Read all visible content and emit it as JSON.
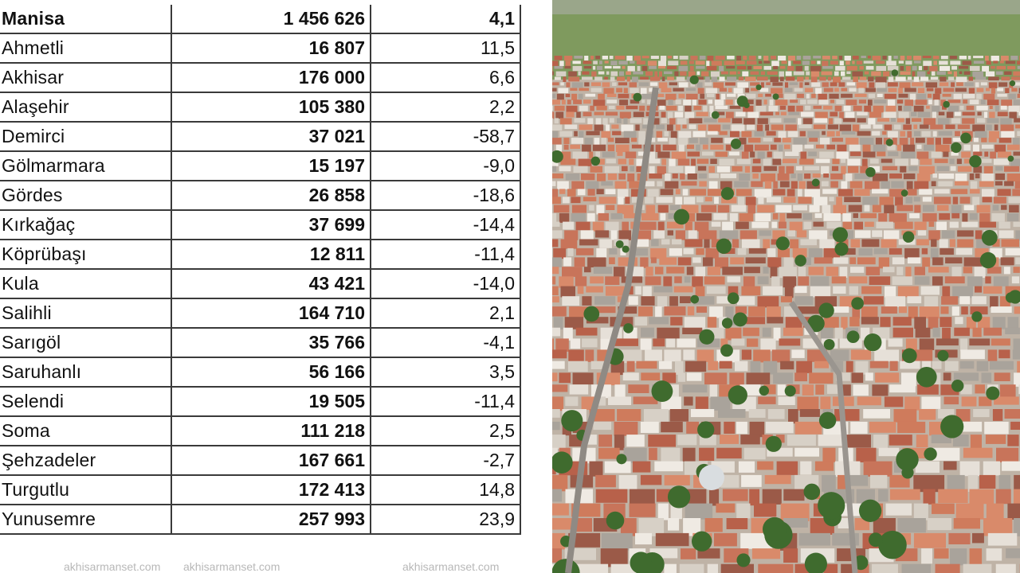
{
  "table": {
    "rows": [
      {
        "name": "Manisa",
        "population": "1 456 626",
        "rate": "4,1"
      },
      {
        "name": "Ahmetli",
        "population": "16 807",
        "rate": "11,5"
      },
      {
        "name": "Akhisar",
        "population": "176 000",
        "rate": "6,6"
      },
      {
        "name": "Alaşehir",
        "population": "105 380",
        "rate": "2,2"
      },
      {
        "name": "Demirci",
        "population": "37 021",
        "rate": "-58,7"
      },
      {
        "name": "Gölmarmara",
        "population": "15 197",
        "rate": "-9,0"
      },
      {
        "name": "Gördes",
        "population": "26 858",
        "rate": "-18,6"
      },
      {
        "name": "Kırkağaç",
        "population": "37 699",
        "rate": "-14,4"
      },
      {
        "name": "Köprübaşı",
        "population": "12 811",
        "rate": "-11,4"
      },
      {
        "name": "Kula",
        "population": "43 421",
        "rate": "-14,0"
      },
      {
        "name": "Salihli",
        "population": "164 710",
        "rate": "2,1"
      },
      {
        "name": "Sarıgöl",
        "population": "35 766",
        "rate": "-4,1"
      },
      {
        "name": "Saruhanlı",
        "population": "56 166",
        "rate": "3,5"
      },
      {
        "name": "Selendi",
        "population": "19 505",
        "rate": "-11,4"
      },
      {
        "name": "Soma",
        "population": "111 218",
        "rate": "2,5"
      },
      {
        "name": "Şehzadeler",
        "population": "167 661",
        "rate": "-2,7"
      },
      {
        "name": "Turgutlu",
        "population": "172 413",
        "rate": "14,8"
      },
      {
        "name": "Yunusemre",
        "population": "257 993",
        "rate": "23,9"
      }
    ]
  },
  "watermark": {
    "items": [
      "akhisarmanset.com",
      "akhisarmanset.com",
      "akhisarmanset.com"
    ],
    "color": "#b8b8b8"
  },
  "photo": {
    "subject": "aerial-city-photo",
    "colors": {
      "fields": "#7f9a5e",
      "roofs": "#c8745a",
      "walls": "#e6e0d8",
      "trees": "#3f6b2e"
    }
  }
}
